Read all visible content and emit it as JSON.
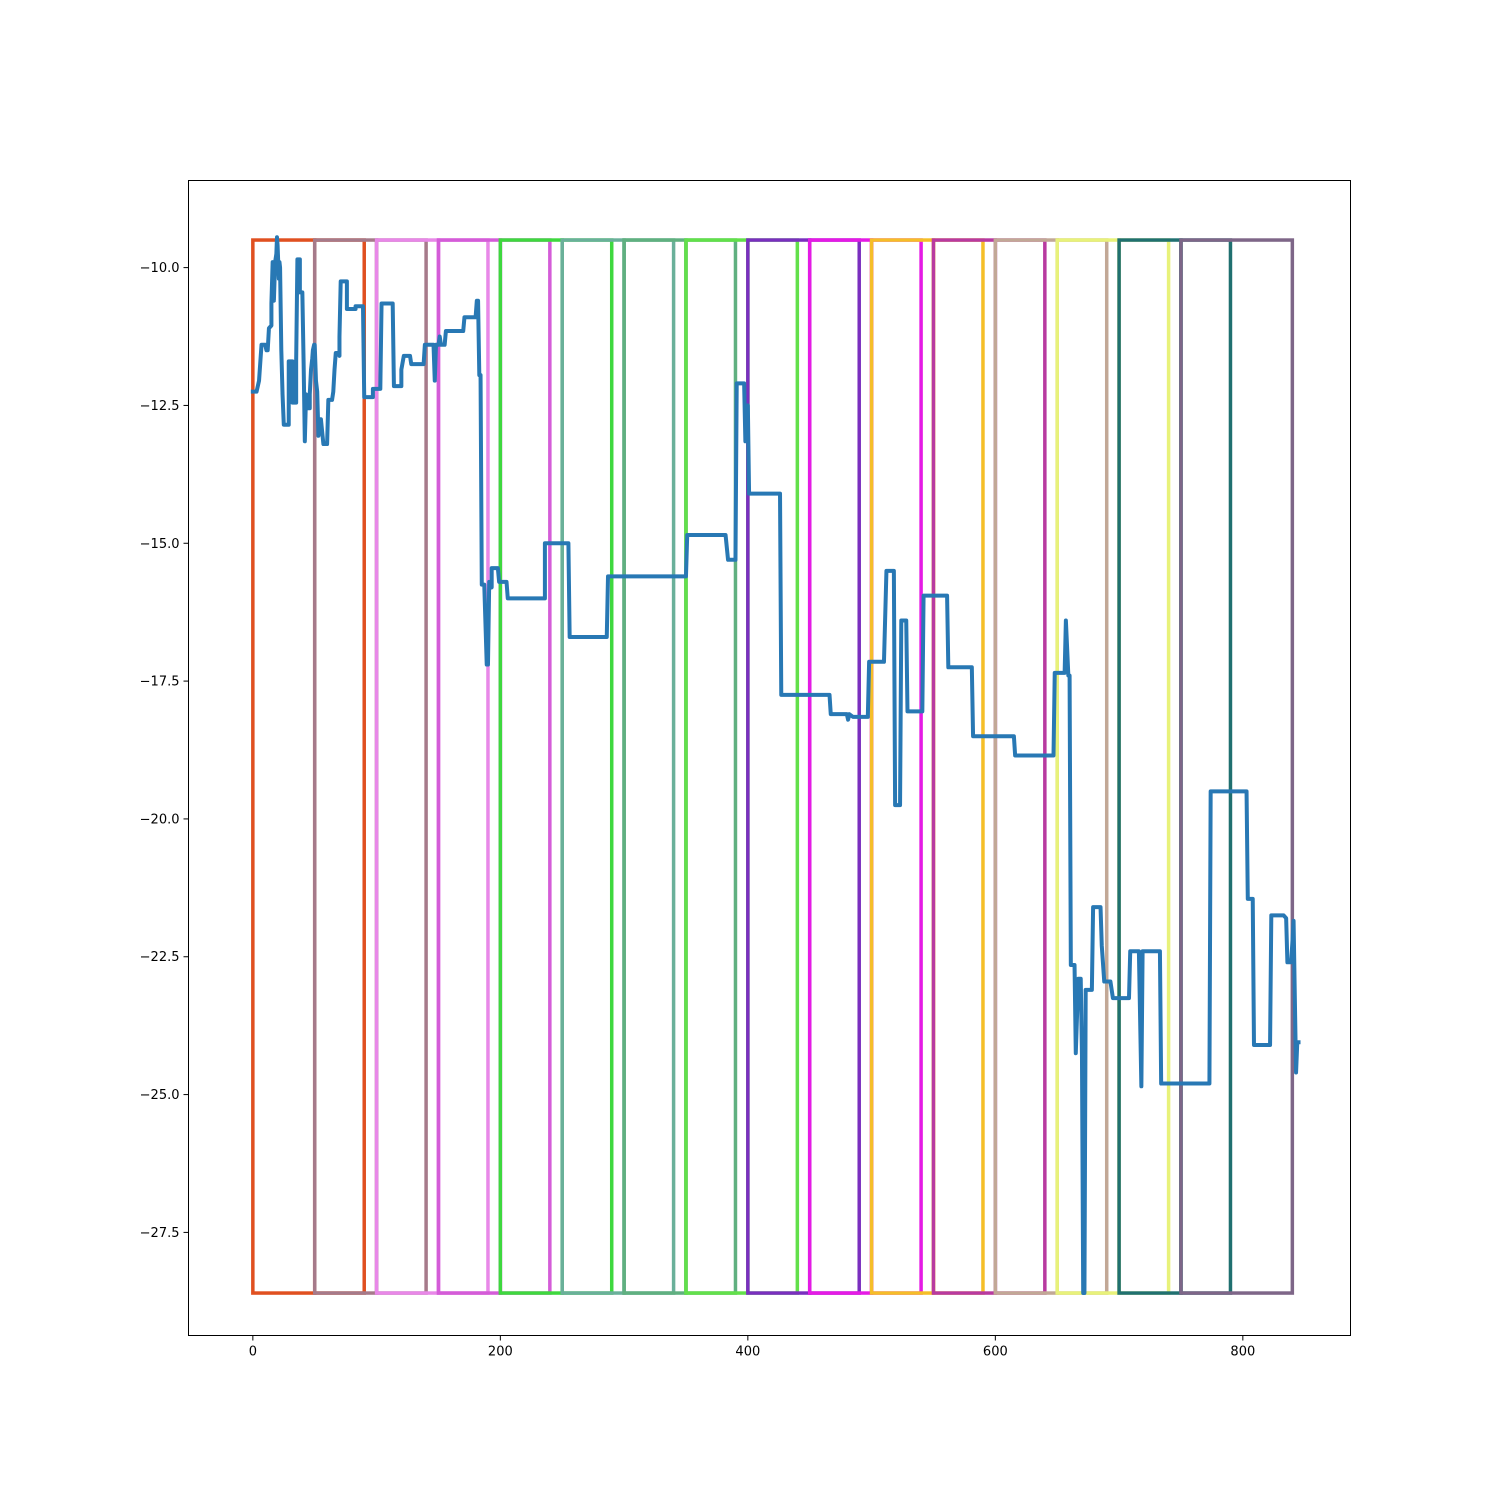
{
  "chart_data": {
    "type": "line",
    "title": "",
    "xlabel": "",
    "ylabel": "",
    "xlim": [
      -52,
      887
    ],
    "ylim": [
      -29.37,
      -8.42
    ],
    "xticks": [
      0,
      200,
      400,
      600,
      800
    ],
    "xtick_labels": [
      "0",
      "200",
      "400",
      "600",
      "800"
    ],
    "yticks": [
      -10.0,
      -12.5,
      -15.0,
      -17.5,
      -20.0,
      -22.5,
      -25.0,
      -27.5
    ],
    "ytick_labels": [
      "−10.0",
      "−12.5",
      "−15.0",
      "−17.5",
      "−20.0",
      "−22.5",
      "−25.0",
      "−27.5"
    ],
    "grid": false,
    "boxes": {
      "y_top": -9.5,
      "y_bottom": -28.6,
      "items": [
        {
          "x0": 0,
          "x1": 50,
          "color": "#e05020"
        },
        {
          "x0": 50,
          "x1": 90,
          "color": "#e05020"
        },
        {
          "x0": 50,
          "x1": 100,
          "color": "#a67a8a"
        },
        {
          "x0": 100,
          "x1": 140,
          "color": "#a67a8a"
        },
        {
          "x0": 100,
          "x1": 150,
          "color": "#e888e8"
        },
        {
          "x0": 150,
          "x1": 190,
          "color": "#e888e8"
        },
        {
          "x0": 150,
          "x1": 200,
          "color": "#d45cd8"
        },
        {
          "x0": 200,
          "x1": 240,
          "color": "#d45cd8"
        },
        {
          "x0": 200,
          "x1": 250,
          "color": "#3ed83e"
        },
        {
          "x0": 250,
          "x1": 290,
          "color": "#3ed83e"
        },
        {
          "x0": 250,
          "x1": 300,
          "color": "#6ab09a"
        },
        {
          "x0": 300,
          "x1": 340,
          "color": "#6ab09a"
        },
        {
          "x0": 300,
          "x1": 350,
          "color": "#60b080"
        },
        {
          "x0": 350,
          "x1": 390,
          "color": "#60b080"
        },
        {
          "x0": 350,
          "x1": 400,
          "color": "#62e04a"
        },
        {
          "x0": 400,
          "x1": 440,
          "color": "#62e04a"
        },
        {
          "x0": 400,
          "x1": 450,
          "color": "#7a2fbf"
        },
        {
          "x0": 450,
          "x1": 490,
          "color": "#7a2fbf"
        },
        {
          "x0": 450,
          "x1": 500,
          "color": "#e51ae5"
        },
        {
          "x0": 500,
          "x1": 540,
          "color": "#e51ae5"
        },
        {
          "x0": 500,
          "x1": 550,
          "color": "#f5be28"
        },
        {
          "x0": 550,
          "x1": 590,
          "color": "#f5be28"
        },
        {
          "x0": 550,
          "x1": 600,
          "color": "#b83aa0"
        },
        {
          "x0": 600,
          "x1": 640,
          "color": "#b83aa0"
        },
        {
          "x0": 600,
          "x1": 650,
          "color": "#c2a896"
        },
        {
          "x0": 650,
          "x1": 690,
          "color": "#c2a896"
        },
        {
          "x0": 650,
          "x1": 700,
          "color": "#e8f27a"
        },
        {
          "x0": 700,
          "x1": 740,
          "color": "#e8f27a"
        },
        {
          "x0": 700,
          "x1": 750,
          "color": "#207070"
        },
        {
          "x0": 750,
          "x1": 790,
          "color": "#207070"
        },
        {
          "x0": 750,
          "x1": 840,
          "color": "#7e6688"
        }
      ]
    },
    "series": [
      {
        "color": "#2878b4",
        "points": [
          [
            0,
            -12.25
          ],
          [
            3,
            -12.25
          ],
          [
            5,
            -12.05
          ],
          [
            7,
            -11.4
          ],
          [
            10,
            -11.4
          ],
          [
            11,
            -11.5
          ],
          [
            12,
            -11.5
          ],
          [
            13,
            -11.1
          ],
          [
            15,
            -11.05
          ],
          [
            15,
            -10.65
          ],
          [
            16,
            -9.9
          ],
          [
            17,
            -10.6
          ],
          [
            18,
            -9.9
          ],
          [
            19,
            -9.75
          ],
          [
            19.5,
            -9.45
          ],
          [
            20,
            -9.6
          ],
          [
            21,
            -10.2
          ],
          [
            21.5,
            -9.9
          ],
          [
            22,
            -10.0
          ],
          [
            23,
            -11.5
          ],
          [
            24,
            -12.3
          ],
          [
            25,
            -12.85
          ],
          [
            29,
            -12.85
          ],
          [
            29,
            -11.7
          ],
          [
            32,
            -11.7
          ],
          [
            32,
            -12.45
          ],
          [
            35,
            -12.45
          ],
          [
            35,
            -11.7
          ],
          [
            36,
            -9.85
          ],
          [
            38,
            -9.85
          ],
          [
            38,
            -10.45
          ],
          [
            40,
            -10.45
          ],
          [
            41,
            -11.7
          ],
          [
            42,
            -13.15
          ],
          [
            43,
            -12.3
          ],
          [
            44,
            -12.55
          ],
          [
            46,
            -12.55
          ],
          [
            46,
            -12.3
          ],
          [
            47,
            -11.85
          ],
          [
            48,
            -11.65
          ],
          [
            48.5,
            -11.5
          ],
          [
            49.5,
            -11.4
          ],
          [
            50,
            -11.4
          ],
          [
            51,
            -12.05
          ],
          [
            52,
            -12.25
          ],
          [
            53,
            -13.05
          ],
          [
            54,
            -12.75
          ],
          [
            55,
            -12.75
          ],
          [
            57,
            -13.2
          ],
          [
            60,
            -13.2
          ],
          [
            61,
            -12.4
          ],
          [
            64,
            -12.4
          ],
          [
            65,
            -12.25
          ],
          [
            66,
            -11.85
          ],
          [
            67,
            -11.55
          ],
          [
            69,
            -11.55
          ],
          [
            70,
            -11.6
          ],
          [
            70,
            -11.25
          ],
          [
            71,
            -10.25
          ],
          [
            76,
            -10.25
          ],
          [
            76,
            -10.75
          ],
          [
            83,
            -10.75
          ],
          [
            83,
            -10.7
          ],
          [
            89,
            -10.7
          ],
          [
            90,
            -12.35
          ],
          [
            97,
            -12.35
          ],
          [
            97,
            -12.2
          ],
          [
            103,
            -12.2
          ],
          [
            104,
            -10.65
          ],
          [
            113,
            -10.65
          ],
          [
            114,
            -12.15
          ],
          [
            120,
            -12.15
          ],
          [
            120,
            -11.85
          ],
          [
            122,
            -11.6
          ],
          [
            127,
            -11.6
          ],
          [
            128,
            -11.75
          ],
          [
            138,
            -11.75
          ],
          [
            139,
            -11.4
          ],
          [
            146,
            -11.4
          ],
          [
            147,
            -12.05
          ],
          [
            148,
            -11.4
          ],
          [
            150,
            -11.4
          ],
          [
            151,
            -11.25
          ],
          [
            152,
            -11.4
          ],
          [
            155,
            -11.4
          ],
          [
            156,
            -11.15
          ],
          [
            170,
            -11.15
          ],
          [
            171,
            -10.9
          ],
          [
            180,
            -10.9
          ],
          [
            181,
            -10.6
          ],
          [
            182,
            -10.6
          ],
          [
            183,
            -11.95
          ],
          [
            184,
            -11.95
          ],
          [
            185,
            -15.75
          ],
          [
            187,
            -15.75
          ],
          [
            189,
            -17.2
          ],
          [
            190,
            -17.2
          ],
          [
            191,
            -15.7
          ],
          [
            193,
            -15.8
          ],
          [
            193,
            -15.45
          ],
          [
            198,
            -15.45
          ],
          [
            199,
            -15.7
          ],
          [
            205,
            -15.7
          ],
          [
            206,
            -16.0
          ],
          [
            236,
            -16.0
          ],
          [
            236,
            -15.0
          ],
          [
            255,
            -15.0
          ],
          [
            256,
            -16.7
          ],
          [
            286,
            -16.7
          ],
          [
            287,
            -15.6
          ],
          [
            350,
            -15.6
          ],
          [
            351,
            -14.85
          ],
          [
            382,
            -14.85
          ],
          [
            384,
            -15.3
          ],
          [
            390,
            -15.3
          ],
          [
            391,
            -12.1
          ],
          [
            397,
            -12.1
          ],
          [
            398,
            -13.15
          ],
          [
            400,
            -12.5
          ],
          [
            401,
            -14.1
          ],
          [
            426,
            -14.1
          ],
          [
            427,
            -17.75
          ],
          [
            466,
            -17.75
          ],
          [
            467,
            -18.1
          ],
          [
            480,
            -18.1
          ],
          [
            481,
            -18.2
          ],
          [
            482,
            -18.1
          ],
          [
            485,
            -18.15
          ],
          [
            497,
            -18.15
          ],
          [
            497,
            -18.1
          ],
          [
            498,
            -17.15
          ],
          [
            510,
            -17.15
          ],
          [
            512,
            -15.5
          ],
          [
            518,
            -15.5
          ],
          [
            519,
            -19.75
          ],
          [
            523,
            -19.75
          ],
          [
            524,
            -16.4
          ],
          [
            528,
            -16.4
          ],
          [
            529,
            -18.05
          ],
          [
            541,
            -18.05
          ],
          [
            542,
            -15.95
          ],
          [
            561,
            -15.95
          ],
          [
            562,
            -17.25
          ],
          [
            581,
            -17.25
          ],
          [
            582,
            -18.5
          ],
          [
            615,
            -18.5
          ],
          [
            616,
            -18.85
          ],
          [
            647,
            -18.85
          ],
          [
            648,
            -17.35
          ],
          [
            656,
            -17.35
          ],
          [
            657,
            -16.4
          ],
          [
            659,
            -17.4
          ],
          [
            660,
            -17.4
          ],
          [
            661,
            -22.65
          ],
          [
            664,
            -22.65
          ],
          [
            665,
            -24.25
          ],
          [
            667,
            -22.9
          ],
          [
            669,
            -22.9
          ],
          [
            670,
            -24.3
          ],
          [
            671,
            -28.6
          ],
          [
            672,
            -28.6
          ],
          [
            673,
            -23.1
          ],
          [
            678,
            -23.1
          ],
          [
            679,
            -21.6
          ],
          [
            685,
            -21.6
          ],
          [
            686,
            -22.3
          ],
          [
            688,
            -22.95
          ],
          [
            693,
            -22.95
          ],
          [
            695,
            -23.25
          ],
          [
            696,
            -23.25
          ],
          [
            697,
            -23.25
          ],
          [
            698,
            -23.25
          ],
          [
            700,
            -23.25
          ],
          [
            702,
            -23.25
          ],
          [
            708,
            -23.25
          ],
          [
            709,
            -22.4
          ],
          [
            716,
            -22.4
          ],
          [
            718,
            -24.85
          ],
          [
            719,
            -22.4
          ],
          [
            733,
            -22.4
          ],
          [
            734,
            -24.8
          ],
          [
            773,
            -24.8
          ],
          [
            774,
            -19.5
          ],
          [
            803,
            -19.5
          ],
          [
            804,
            -21.45
          ],
          [
            808,
            -21.45
          ],
          [
            809,
            -24.1
          ],
          [
            822,
            -24.1
          ],
          [
            823,
            -21.75
          ],
          [
            833,
            -21.75
          ],
          [
            835,
            -21.8
          ],
          [
            836,
            -22.6
          ],
          [
            839,
            -22.6
          ],
          [
            840,
            -22.25
          ],
          [
            841,
            -21.85
          ],
          [
            843,
            -24.6
          ],
          [
            844,
            -24.05
          ],
          [
            845,
            -24.05
          ]
        ]
      }
    ]
  }
}
